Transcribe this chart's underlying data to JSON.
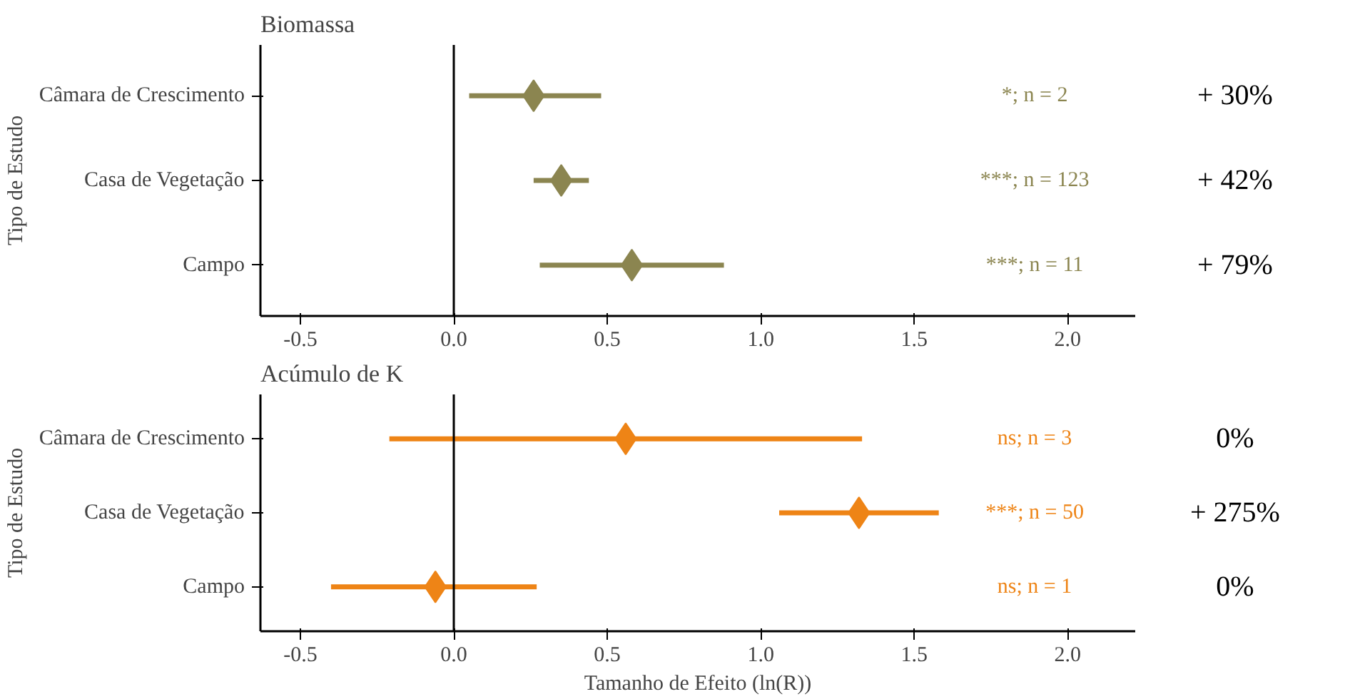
{
  "chart_data": [
    {
      "type": "scatter",
      "title": "Biomassa",
      "ylabel": "Tipo de Estudo",
      "orientation": "horizontal",
      "marker": "diamond",
      "grid": false,
      "categories": [
        "Câmara de Crescimento",
        "Casa de Vegetação",
        "Campo"
      ],
      "series": [
        {
          "color": "#8b8550",
          "values": [
            0.26,
            0.35,
            0.58
          ],
          "errors": [
            [
              0.05,
              0.48
            ],
            [
              0.26,
              0.44
            ],
            [
              0.28,
              0.88
            ]
          ]
        }
      ],
      "xlim": [
        -0.63,
        2.22
      ],
      "xticks": [
        -0.5,
        {
          "value": 0,
          "label": "0.0"
        },
        0.5,
        {
          "value": 1,
          "label": "1.0"
        },
        1.5,
        {
          "value": 2,
          "label": "2.0"
        }
      ],
      "ref_lines": [
        {
          "axis": "x",
          "value": 0,
          "color": "#000000"
        }
      ],
      "annotations": [
        "*; n = 2",
        "***; n = 123",
        "***; n = 11",
        "+ 30%",
        "+ 42%",
        "+ 79%"
      ]
    },
    {
      "type": "scatter",
      "title": "Acúmulo de K",
      "xlabel": "Tamanho de Efeito (ln(R))",
      "ylabel": "Tipo de Estudo",
      "orientation": "horizontal",
      "marker": "diamond",
      "grid": false,
      "categories": [
        "Câmara de Crescimento",
        "Casa de Vegetação",
        "Campo"
      ],
      "series": [
        {
          "color": "#ee8416",
          "values": [
            0.56,
            1.32,
            -0.06
          ],
          "errors": [
            [
              -0.21,
              1.33
            ],
            [
              1.06,
              1.58
            ],
            [
              -0.4,
              0.27
            ]
          ]
        }
      ],
      "xlim": [
        -0.63,
        2.22
      ],
      "xticks": [
        -0.5,
        {
          "value": 0,
          "label": "0.0"
        },
        0.5,
        {
          "value": 1,
          "label": "1.0"
        },
        1.5,
        {
          "value": 2,
          "label": "2.0"
        }
      ],
      "ref_lines": [
        {
          "axis": "x",
          "value": 0,
          "color": "#000000"
        }
      ],
      "annotations": [
        "ns; n = 3",
        "***; n = 50",
        "ns; n = 1",
        "0%",
        "+ 275%",
        "0%"
      ]
    }
  ]
}
